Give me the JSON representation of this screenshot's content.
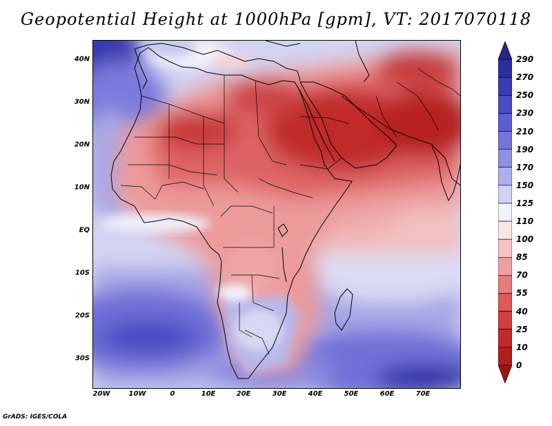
{
  "title": "Geopotential Height at 1000hPa [gpm], VT: 2017070118",
  "footer": "GrADS: IGES/COLA",
  "lat_labels": [
    "40N",
    "30N",
    "20N",
    "10N",
    "EQ",
    "10S",
    "20S",
    "30S"
  ],
  "lon_labels": [
    "20W",
    "10W",
    "0",
    "10E",
    "20E",
    "30E",
    "40E",
    "50E",
    "60E",
    "70E"
  ],
  "colorbar": {
    "levels": [
      "290",
      "270",
      "250",
      "230",
      "210",
      "190",
      "170",
      "150",
      "125",
      "110",
      "100",
      "85",
      "70",
      "55",
      "40",
      "25",
      "10",
      "0"
    ],
    "colors": [
      "#26248c",
      "#2d2d9f",
      "#3a3ab2",
      "#4a4ac2",
      "#5d5dd2",
      "#7474dc",
      "#8f8fe4",
      "#aeaeec",
      "#d2d2f4",
      "#f2f2fb",
      "#fbe6e6",
      "#f6c4c4",
      "#eea0a0",
      "#e67c7c",
      "#dc5a5a",
      "#d03e3e",
      "#c22a2a",
      "#b01e1e",
      "#9c1414"
    ]
  },
  "map": {
    "extent": {
      "lon_min": -22,
      "lon_max": 80,
      "lat_min": -37,
      "lat_max": 45
    },
    "field": "Geopotential Height at 1000hPa",
    "units": "gpm",
    "valid_time": "2017070118"
  }
}
